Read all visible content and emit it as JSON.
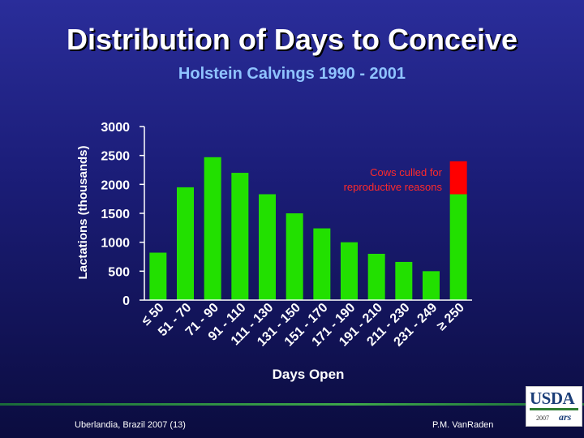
{
  "title": "Distribution of Days to Conceive",
  "subtitle": "Holstein Calvings 1990 - 2001",
  "footer": {
    "left": "Uberlandia, Brazil 2007 (13)",
    "right": "P.M. VanRaden"
  },
  "logo": {
    "text": "USDA",
    "year": "2007",
    "sub": "ars"
  },
  "colors": {
    "bar": "#22e000",
    "culled": "#ff0000",
    "axis": "#ffffff",
    "annotation": "#ff2a2a"
  },
  "chart_data": {
    "type": "bar",
    "xlabel": "Days Open",
    "ylabel": "Lactations (thousands)",
    "ylim": [
      0,
      3000
    ],
    "yticks": [
      0,
      500,
      1000,
      1500,
      2000,
      2500,
      3000
    ],
    "grid": false,
    "categories": [
      "≤ 50",
      "51 - 70",
      "71 - 90",
      "91 - 110",
      "111 - 130",
      "131 - 150",
      "151 - 170",
      "171 - 190",
      "191 - 210",
      "211 - 230",
      "231 - 249",
      "≥ 250"
    ],
    "series": [
      {
        "values": [
          820,
          1950,
          2470,
          2200,
          1830,
          1500,
          1240,
          1000,
          800,
          660,
          500,
          1830
        ]
      },
      {
        "values": [
          0,
          0,
          0,
          0,
          0,
          0,
          0,
          0,
          0,
          0,
          0,
          570
        ]
      }
    ],
    "annotation": "Cows culled for reproductive reasons"
  }
}
